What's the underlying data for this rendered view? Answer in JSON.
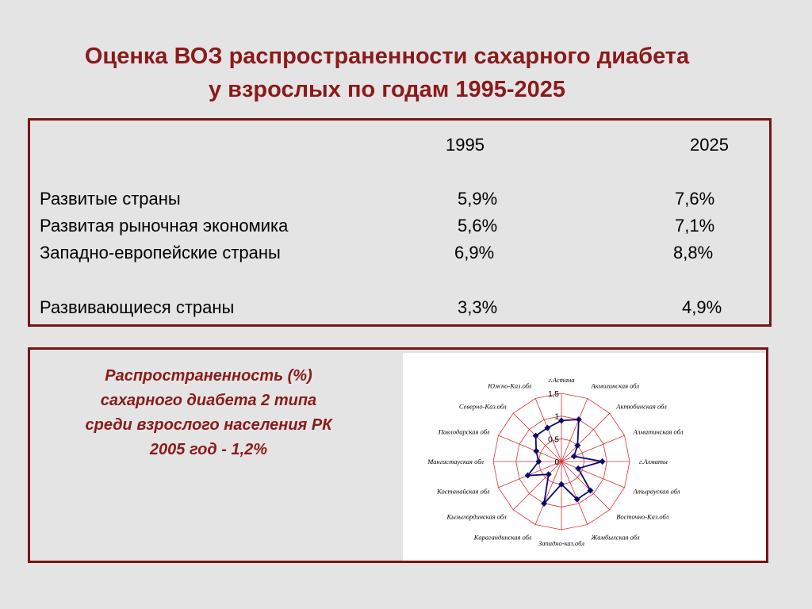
{
  "title_line1": "Оценка ВОЗ распространенности сахарного диабета",
  "title_line2": "у взрослых по годам 1995-2025",
  "table": {
    "col1995": "1995",
    "col2025": "2025",
    "rows": [
      {
        "label": "Развитые страны",
        "v1995": "5,9%",
        "v2025": "7,6%"
      },
      {
        "label": "Развитая рыночная экономика",
        "v1995": "5,6%",
        "v2025": "7,1%"
      },
      {
        "label": "Западно-европейские страны",
        "v1995": "6,9%",
        "v2025": "8,8%"
      },
      {
        "label": "Развивающиеся страны",
        "v1995": "3,3%",
        "v2025": "4,9%"
      }
    ]
  },
  "caption": {
    "line1": "Распространенность (%)",
    "line2": "сахарного диабета 2 типа",
    "line3": "среди взрослого населения РК",
    "line4": "2005 год -  1,2%"
  },
  "colors": {
    "accent": "#8b1a1a",
    "border": "#7a1414",
    "grid": "#e03030",
    "series": "#0a0a6e"
  },
  "chart_data": {
    "type": "radar",
    "rmax": 1.5,
    "ticks": [
      "0",
      "0,5",
      "1",
      "1,5"
    ],
    "tick_values": [
      0,
      0.5,
      1,
      1.5
    ],
    "categories": [
      "г.Астана",
      "Акмолинская обл",
      "Актюбинская обл",
      "Алматинская обл",
      "г.Алматы",
      "Атырауская обл",
      "Восточно-Каз.обл",
      "Жамбылская обл",
      "Западно-каз.обл",
      "Карагандинская обл",
      "Кызылординская обл",
      "Костанайская обл",
      "Мангистауская обл",
      "Павлодарская обл",
      "Северно-Каз.обл",
      "Южно-Каз.обл"
    ],
    "values": [
      0.9,
      1.0,
      0.5,
      0.3,
      0.9,
      0.4,
      0.9,
      0.9,
      0.5,
      1.0,
      0.4,
      0.8,
      0.5,
      0.6,
      0.8,
      0.8
    ]
  }
}
